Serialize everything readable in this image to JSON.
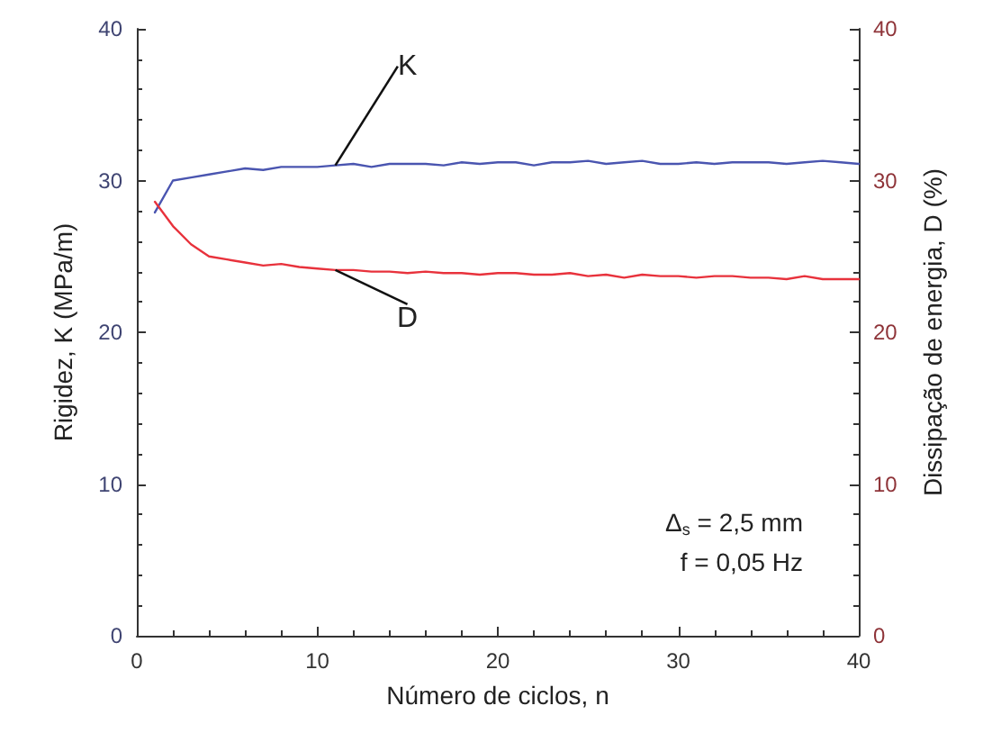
{
  "chart_data": {
    "type": "line",
    "xlabel": "Número de ciclos, n",
    "ylabel": "Rigidez, K (MPa/m)",
    "y2label": "Dissipação de energia, D (%)",
    "x": [
      1,
      2,
      3,
      4,
      5,
      6,
      7,
      8,
      9,
      10,
      11,
      12,
      13,
      14,
      15,
      16,
      17,
      18,
      19,
      20,
      21,
      22,
      23,
      24,
      25,
      26,
      27,
      28,
      29,
      30,
      31,
      32,
      33,
      34,
      35,
      36,
      37,
      38,
      39,
      40
    ],
    "series": [
      {
        "name": "K",
        "color": "#4a55b0",
        "values": [
          27.9,
          30.0,
          30.2,
          30.4,
          30.6,
          30.8,
          30.7,
          30.9,
          30.9,
          30.9,
          31.0,
          31.1,
          30.9,
          31.1,
          31.1,
          31.1,
          31.0,
          31.2,
          31.1,
          31.2,
          31.2,
          31.0,
          31.2,
          31.2,
          31.3,
          31.1,
          31.2,
          31.3,
          31.1,
          31.1,
          31.2,
          31.1,
          31.2,
          31.2,
          31.2,
          31.1,
          31.2,
          31.3,
          31.2,
          31.1
        ]
      },
      {
        "name": "D",
        "color": "#e8323c",
        "axis": "y2",
        "values": [
          28.6,
          27.0,
          25.8,
          25.0,
          24.8,
          24.6,
          24.4,
          24.5,
          24.3,
          24.2,
          24.1,
          24.1,
          24.0,
          24.0,
          23.9,
          24.0,
          23.9,
          23.9,
          23.8,
          23.9,
          23.9,
          23.8,
          23.8,
          23.9,
          23.7,
          23.8,
          23.6,
          23.8,
          23.7,
          23.7,
          23.6,
          23.7,
          23.7,
          23.6,
          23.6,
          23.5,
          23.7,
          23.5,
          23.5,
          23.5
        ]
      }
    ],
    "xlim": [
      0,
      40
    ],
    "xticks": [
      0,
      10,
      20,
      30,
      40
    ],
    "ylim": [
      0,
      40
    ],
    "yticks": [
      0,
      10,
      20,
      30,
      40
    ],
    "y2lim": [
      0,
      40
    ],
    "y2ticks": [
      0,
      10,
      20,
      30,
      40
    ],
    "annotations": [
      "Δ$_{s}$ = 2,5 mm",
      "f = 0,05 Hz"
    ],
    "grid": false,
    "legend": false,
    "marker": "none",
    "line_style": "solid"
  }
}
